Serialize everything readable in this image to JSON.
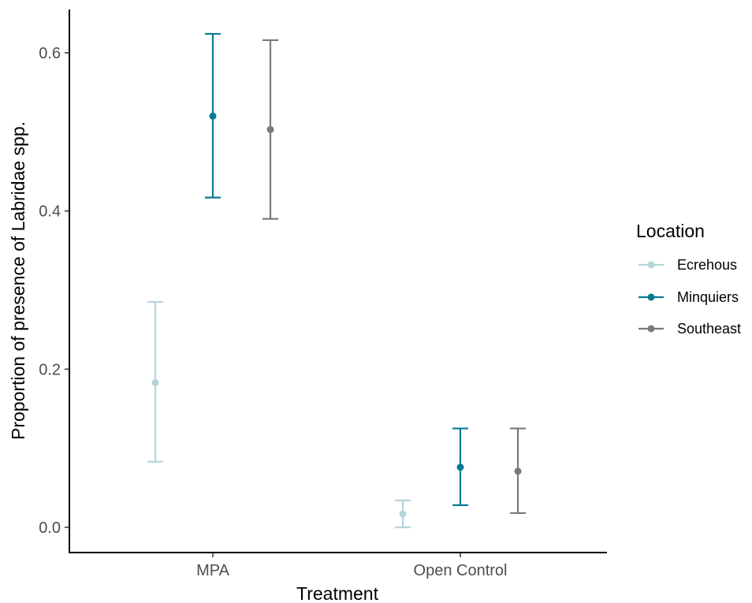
{
  "chart_data": {
    "type": "errorbar",
    "categories": [
      "MPA",
      "Open Control"
    ],
    "xlabel": "Treatment",
    "ylabel": "Proportion of presence of Labridae spp.",
    "ylim": [
      -0.03,
      0.655
    ],
    "yticks": [
      0.0,
      0.2,
      0.4,
      0.6
    ],
    "ytick_labels": [
      "0.0",
      "0.2",
      "0.4",
      "0.6"
    ],
    "grid": false,
    "legend": {
      "title": "Location",
      "placement": "right"
    },
    "series": [
      {
        "name": "Ecrehous",
        "color": "#b4d5d9",
        "points": [
          {
            "category": "MPA",
            "y": 0.183,
            "lower": 0.083,
            "upper": 0.285
          },
          {
            "category": "Open Control",
            "y": 0.017,
            "lower": 0.0,
            "upper": 0.034
          }
        ]
      },
      {
        "name": "Minquiers",
        "color": "#087a94",
        "points": [
          {
            "category": "MPA",
            "y": 0.52,
            "lower": 0.417,
            "upper": 0.624
          },
          {
            "category": "Open Control",
            "y": 0.076,
            "lower": 0.028,
            "upper": 0.125
          }
        ]
      },
      {
        "name": "Southeast",
        "color": "#7a7a7a",
        "points": [
          {
            "category": "MPA",
            "y": 0.503,
            "lower": 0.39,
            "upper": 0.616
          },
          {
            "category": "Open Control",
            "y": 0.071,
            "lower": 0.018,
            "upper": 0.125
          }
        ]
      }
    ]
  }
}
